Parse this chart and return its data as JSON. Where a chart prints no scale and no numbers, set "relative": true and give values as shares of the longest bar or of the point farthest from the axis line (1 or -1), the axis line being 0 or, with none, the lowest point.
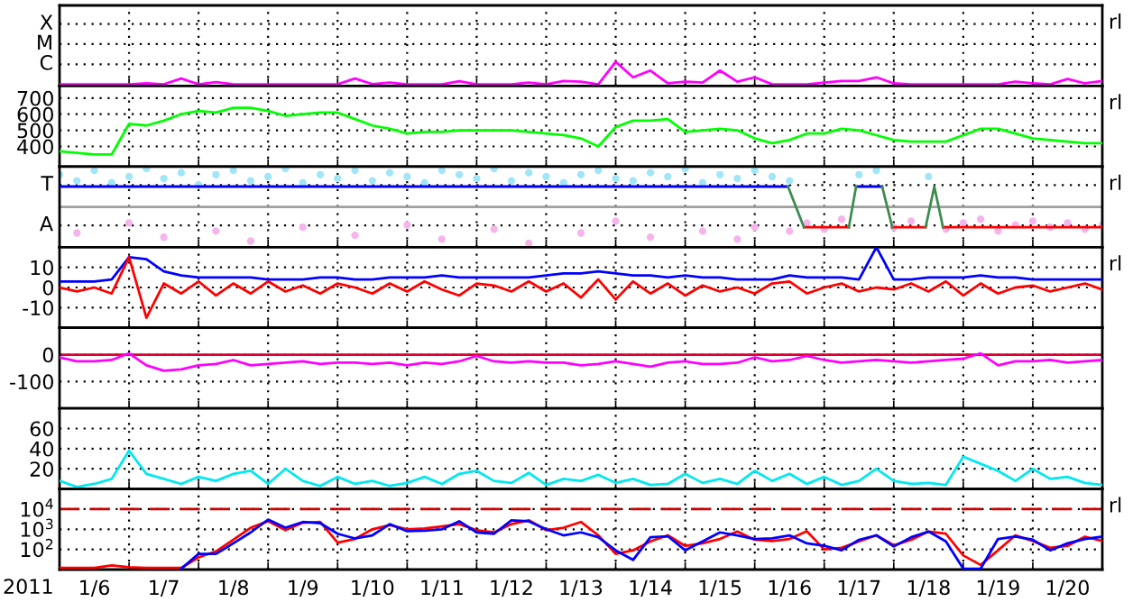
{
  "chart_data": [
    {
      "type": "line",
      "xlim": [
        "2011-01-06T00:00",
        "2011-01-21T00:00"
      ],
      "relative": true,
      "tick_labels": false,
      "grid": true,
      "annotations": [
        "X",
        "M",
        "C",
        "rl"
      ],
      "xticks": [
        {
          "value": "2011-01-07T00:00",
          "label": null
        },
        {
          "value": "2011-01-08T00:00",
          "label": null
        },
        {
          "value": "2011-01-09T00:00",
          "label": null
        },
        {
          "value": "2011-01-10T00:00",
          "label": null
        },
        {
          "value": "2011-01-11T00:00",
          "label": null
        },
        {
          "value": "2011-01-12T00:00",
          "label": null
        },
        {
          "value": "2011-01-13T00:00",
          "label": null
        },
        {
          "value": "2011-01-14T00:00",
          "label": null
        },
        {
          "value": "2011-01-15T00:00",
          "label": null
        },
        {
          "value": "2011-01-16T00:00",
          "label": null
        },
        {
          "value": "2011-01-17T00:00",
          "label": null
        },
        {
          "value": "2011-01-18T00:00",
          "label": null
        },
        {
          "value": "2011-01-19T00:00",
          "label": null
        },
        {
          "value": "2011-01-20T00:00",
          "label": null
        }
      ],
      "x": [
        "2011-01-06T00:00",
        "2011-01-06T06:00",
        "2011-01-06T12:00",
        "2011-01-06T18:00",
        "2011-01-07T00:00",
        "2011-01-07T06:00",
        "2011-01-07T12:00",
        "2011-01-07T18:00",
        "2011-01-08T00:00",
        "2011-01-08T06:00",
        "2011-01-08T12:00",
        "2011-01-08T18:00",
        "2011-01-09T00:00",
        "2011-01-09T06:00",
        "2011-01-09T12:00",
        "2011-01-09T18:00",
        "2011-01-10T00:00",
        "2011-01-10T06:00",
        "2011-01-10T12:00",
        "2011-01-10T18:00",
        "2011-01-11T00:00",
        "2011-01-11T06:00",
        "2011-01-11T12:00",
        "2011-01-11T18:00",
        "2011-01-12T00:00",
        "2011-01-12T06:00",
        "2011-01-12T12:00",
        "2011-01-12T18:00",
        "2011-01-13T00:00",
        "2011-01-13T06:00",
        "2011-01-13T12:00",
        "2011-01-13T18:00",
        "2011-01-14T00:00",
        "2011-01-14T06:00",
        "2011-01-14T12:00",
        "2011-01-14T18:00",
        "2011-01-15T00:00",
        "2011-01-15T06:00",
        "2011-01-15T12:00",
        "2011-01-15T18:00",
        "2011-01-16T00:00",
        "2011-01-16T06:00",
        "2011-01-16T12:00",
        "2011-01-16T18:00",
        "2011-01-17T00:00",
        "2011-01-17T06:00",
        "2011-01-17T12:00",
        "2011-01-17T18:00",
        "2011-01-18T00:00",
        "2011-01-18T06:00",
        "2011-01-18T12:00",
        "2011-01-18T18:00",
        "2011-01-19T00:00",
        "2011-01-19T06:00",
        "2011-01-19T12:00",
        "2011-01-19T18:00",
        "2011-01-20T00:00",
        "2011-01-20T06:00",
        "2011-01-20T12:00",
        "2011-01-20T18:00",
        "2011-01-21T00:00"
      ],
      "series": [
        {
          "color": "#ff00ff",
          "values": [
            0.07,
            0.07,
            0.07,
            0.07,
            0.07,
            0.11,
            0.07,
            0.31,
            0.07,
            0.16,
            0.07,
            0.07,
            0.07,
            0.07,
            0.07,
            0.07,
            0.07,
            0.31,
            0.08,
            0.14,
            0.07,
            0.07,
            0.07,
            0.2,
            0.07,
            0.07,
            0.07,
            0.14,
            0.07,
            0.21,
            0.18,
            0.07,
            1,
            0.36,
            0.64,
            0.11,
            0.18,
            0.14,
            0.64,
            0.18,
            0.36,
            0.07,
            0.07,
            0.07,
            0.14,
            0.21,
            0.21,
            0.36,
            0.11,
            0.07,
            0.07,
            0.07,
            0.07,
            0.07,
            0.07,
            0.18,
            0.11,
            0.07,
            0.29,
            0.11,
            0.21
          ]
        }
      ]
    },
    {
      "type": "line",
      "xlim": [
        "2011-01-06T00:00",
        "2011-01-21T00:00"
      ],
      "ylim": [
        275,
        775
      ],
      "yticks": [
        400,
        500,
        600,
        700
      ],
      "tick_labels": "y",
      "grid": true,
      "annotations": [
        "rl"
      ],
      "xticks": [
        {
          "value": "2011-01-07T00:00",
          "label": null
        },
        {
          "value": "2011-01-08T00:00",
          "label": null
        },
        {
          "value": "2011-01-09T00:00",
          "label": null
        },
        {
          "value": "2011-01-10T00:00",
          "label": null
        },
        {
          "value": "2011-01-11T00:00",
          "label": null
        },
        {
          "value": "2011-01-12T00:00",
          "label": null
        },
        {
          "value": "2011-01-13T00:00",
          "label": null
        },
        {
          "value": "2011-01-14T00:00",
          "label": null
        },
        {
          "value": "2011-01-15T00:00",
          "label": null
        },
        {
          "value": "2011-01-16T00:00",
          "label": null
        },
        {
          "value": "2011-01-17T00:00",
          "label": null
        },
        {
          "value": "2011-01-18T00:00",
          "label": null
        },
        {
          "value": "2011-01-19T00:00",
          "label": null
        },
        {
          "value": "2011-01-20T00:00",
          "label": null
        }
      ],
      "x": [
        "2011-01-06T00:00",
        "2011-01-06T06:00",
        "2011-01-06T12:00",
        "2011-01-06T18:00",
        "2011-01-07T00:00",
        "2011-01-07T06:00",
        "2011-01-07T12:00",
        "2011-01-07T18:00",
        "2011-01-08T00:00",
        "2011-01-08T06:00",
        "2011-01-08T12:00",
        "2011-01-08T18:00",
        "2011-01-09T00:00",
        "2011-01-09T06:00",
        "2011-01-09T12:00",
        "2011-01-09T18:00",
        "2011-01-10T00:00",
        "2011-01-10T06:00",
        "2011-01-10T12:00",
        "2011-01-10T18:00",
        "2011-01-11T00:00",
        "2011-01-11T06:00",
        "2011-01-11T12:00",
        "2011-01-11T18:00",
        "2011-01-12T00:00",
        "2011-01-12T06:00",
        "2011-01-12T12:00",
        "2011-01-12T18:00",
        "2011-01-13T00:00",
        "2011-01-13T06:00",
        "2011-01-13T12:00",
        "2011-01-13T18:00",
        "2011-01-14T00:00",
        "2011-01-14T06:00",
        "2011-01-14T12:00",
        "2011-01-14T18:00",
        "2011-01-15T00:00",
        "2011-01-15T06:00",
        "2011-01-15T12:00",
        "2011-01-15T18:00",
        "2011-01-16T00:00",
        "2011-01-16T06:00",
        "2011-01-16T12:00",
        "2011-01-16T18:00",
        "2011-01-17T00:00",
        "2011-01-17T06:00",
        "2011-01-17T12:00",
        "2011-01-17T18:00",
        "2011-01-18T00:00",
        "2011-01-18T06:00",
        "2011-01-18T12:00",
        "2011-01-18T18:00",
        "2011-01-19T00:00",
        "2011-01-19T06:00",
        "2011-01-19T12:00",
        "2011-01-19T18:00",
        "2011-01-20T00:00",
        "2011-01-20T06:00",
        "2011-01-20T12:00",
        "2011-01-20T18:00",
        "2011-01-21T00:00"
      ],
      "series": [
        {
          "color": "#00ff00",
          "values": [
            370,
            360,
            350,
            350,
            540,
            530,
            560,
            600,
            620,
            610,
            640,
            640,
            620,
            590,
            600,
            610,
            610,
            570,
            530,
            510,
            480,
            490,
            490,
            500,
            500,
            500,
            500,
            490,
            480,
            470,
            450,
            400,
            520,
            560,
            560,
            570,
            490,
            500,
            510,
            500,
            450,
            420,
            440,
            480,
            480,
            510,
            500,
            470,
            440,
            430,
            430,
            430,
            470,
            510,
            510,
            480,
            450,
            440,
            430,
            420,
            420
          ]
        }
      ]
    },
    {
      "type": "line",
      "xlim": [
        "2011-01-06T00:00",
        "2011-01-21T00:00"
      ],
      "relative": true,
      "tick_labels": false,
      "grid": true,
      "annotations": [
        "T",
        "A",
        "rl"
      ],
      "ref_lines": [
        {
          "axis": "y",
          "value": 0,
          "color": "#a0a0a0",
          "line_style": "solid"
        }
      ],
      "xticks": [
        {
          "value": "2011-01-07T00:00",
          "label": null
        },
        {
          "value": "2011-01-08T00:00",
          "label": null
        },
        {
          "value": "2011-01-09T00:00",
          "label": null
        },
        {
          "value": "2011-01-10T00:00",
          "label": null
        },
        {
          "value": "2011-01-11T00:00",
          "label": null
        },
        {
          "value": "2011-01-12T00:00",
          "label": null
        },
        {
          "value": "2011-01-13T00:00",
          "label": null
        },
        {
          "value": "2011-01-14T00:00",
          "label": null
        },
        {
          "value": "2011-01-15T00:00",
          "label": null
        },
        {
          "value": "2011-01-16T00:00",
          "label": null
        },
        {
          "value": "2011-01-17T00:00",
          "label": null
        },
        {
          "value": "2011-01-18T00:00",
          "label": null
        },
        {
          "value": "2011-01-19T00:00",
          "label": null
        },
        {
          "value": "2011-01-20T00:00",
          "label": null
        }
      ],
      "x": [
        "2011-01-06T00:00",
        "2011-01-06T06:00",
        "2011-01-06T12:00",
        "2011-01-06T18:00",
        "2011-01-07T00:00",
        "2011-01-07T06:00",
        "2011-01-07T12:00",
        "2011-01-07T18:00",
        "2011-01-08T00:00",
        "2011-01-08T06:00",
        "2011-01-08T12:00",
        "2011-01-08T18:00",
        "2011-01-09T00:00",
        "2011-01-09T06:00",
        "2011-01-09T12:00",
        "2011-01-09T18:00",
        "2011-01-10T00:00",
        "2011-01-10T06:00",
        "2011-01-10T12:00",
        "2011-01-10T18:00",
        "2011-01-11T00:00",
        "2011-01-11T06:00",
        "2011-01-11T12:00",
        "2011-01-11T18:00",
        "2011-01-12T00:00",
        "2011-01-12T06:00",
        "2011-01-12T12:00",
        "2011-01-12T18:00",
        "2011-01-13T00:00",
        "2011-01-13T06:00",
        "2011-01-13T12:00",
        "2011-01-13T18:00",
        "2011-01-14T00:00",
        "2011-01-14T06:00",
        "2011-01-14T12:00",
        "2011-01-14T18:00",
        "2011-01-15T00:00",
        "2011-01-15T06:00",
        "2011-01-15T12:00",
        "2011-01-15T18:00",
        "2011-01-16T00:00",
        "2011-01-16T06:00",
        "2011-01-16T12:00",
        "2011-01-16T18:00",
        "2011-01-17T00:00",
        "2011-01-17T06:00",
        "2011-01-17T12:00",
        "2011-01-17T18:00",
        "2011-01-18T00:00",
        "2011-01-18T06:00",
        "2011-01-18T12:00",
        "2011-01-18T18:00",
        "2011-01-19T00:00",
        "2011-01-19T06:00",
        "2011-01-19T12:00",
        "2011-01-19T18:00",
        "2011-01-20T00:00",
        "2011-01-20T06:00",
        "2011-01-20T12:00",
        "2011-01-20T18:00",
        "2011-01-21T00:00"
      ],
      "series": [
        {
          "type": "scatter",
          "color": "#a0e6f8",
          "values": [
            0.84,
            0.68,
            0.95,
            0.63,
            0.79,
            1,
            0.74,
            0.89,
            0.58,
            0.84,
            0.95,
            0.68,
            0.79,
            1,
            0.63,
            0.84,
            0.74,
            0.95,
            0.68,
            0.89,
            0.79,
            0.63,
            0.95,
            0.84,
            0.74,
            1,
            0.68,
            0.89,
            0.79,
            0.63,
            0.84,
            0.95,
            0.74,
            0.68,
            0.89,
            0.79,
            1,
            0.63,
            0.84,
            0.74,
            0.95,
            0.79,
            0.68,
            null,
            null,
            null,
            0.84,
            0.95,
            null,
            null,
            0.79,
            null,
            null,
            null,
            null,
            null,
            null,
            null,
            null,
            null,
            null
          ]
        },
        {
          "type": "scatter",
          "color": "#f5b5ec",
          "values": [
            null,
            -0.68,
            null,
            null,
            -0.42,
            null,
            -0.79,
            null,
            null,
            -0.63,
            null,
            -0.89,
            null,
            null,
            -0.53,
            null,
            null,
            -0.74,
            null,
            null,
            -0.47,
            null,
            -0.84,
            null,
            null,
            -0.58,
            null,
            -0.95,
            null,
            null,
            -0.68,
            null,
            -0.37,
            null,
            -0.79,
            null,
            null,
            -0.63,
            null,
            -0.84,
            -0.53,
            null,
            -0.63,
            -0.42,
            -0.58,
            -0.32,
            null,
            null,
            -0.53,
            -0.37,
            null,
            -0.58,
            -0.42,
            -0.32,
            -0.63,
            -0.47,
            -0.37,
            -0.53,
            -0.42,
            -0.58,
            -0.47
          ]
        },
        {
          "color": "#0000ff",
          "x": [
            "2011-01-06T00:00",
            "2011-01-16T11:30",
            "2011-01-16T12:00",
            "2011-01-17T11:00",
            "2011-01-17T20:00"
          ],
          "values": [
            0.53,
            0.53,
            null,
            0.53,
            0.53
          ]
        },
        {
          "color": "#ff0000",
          "x": [
            "2011-01-16T17:00",
            "2011-01-17T08:30",
            "2011-01-17T09:00",
            "2011-01-17T23:30",
            "2011-01-18T11:00",
            "2011-01-18T11:30",
            "2011-01-18T17:00",
            "2011-01-21T00:00"
          ],
          "values": [
            -0.53,
            -0.53,
            null,
            -0.53,
            -0.53,
            null,
            -0.53,
            -0.53
          ]
        },
        {
          "color": "#3c8c50",
          "x": [
            "2011-01-16T11:30",
            "2011-01-16T17:00",
            "2011-01-16T18:00",
            "2011-01-17T08:30",
            "2011-01-17T11:00",
            "2011-01-17T12:00",
            "2011-01-17T20:00",
            "2011-01-17T23:30",
            "2011-01-18T00:00",
            "2011-01-18T11:00",
            "2011-01-18T14:00",
            "2011-01-18T17:00"
          ],
          "values": [
            0.53,
            -0.53,
            null,
            -0.53,
            0.53,
            null,
            0.53,
            -0.53,
            null,
            -0.53,
            0.53,
            -0.53
          ]
        }
      ]
    },
    {
      "type": "line",
      "xlim": [
        "2011-01-06T00:00",
        "2011-01-21T00:00"
      ],
      "ylim": [
        -20,
        20
      ],
      "yticks": [
        -10,
        0,
        10
      ],
      "tick_labels": "y",
      "grid": true,
      "annotations": [
        "rl"
      ],
      "xticks": [
        {
          "value": "2011-01-07T00:00",
          "label": null
        },
        {
          "value": "2011-01-08T00:00",
          "label": null
        },
        {
          "value": "2011-01-09T00:00",
          "label": null
        },
        {
          "value": "2011-01-10T00:00",
          "label": null
        },
        {
          "value": "2011-01-11T00:00",
          "label": null
        },
        {
          "value": "2011-01-12T00:00",
          "label": null
        },
        {
          "value": "2011-01-13T00:00",
          "label": null
        },
        {
          "value": "2011-01-14T00:00",
          "label": null
        },
        {
          "value": "2011-01-15T00:00",
          "label": null
        },
        {
          "value": "2011-01-16T00:00",
          "label": null
        },
        {
          "value": "2011-01-17T00:00",
          "label": null
        },
        {
          "value": "2011-01-18T00:00",
          "label": null
        },
        {
          "value": "2011-01-19T00:00",
          "label": null
        },
        {
          "value": "2011-01-20T00:00",
          "label": null
        }
      ],
      "x": [
        "2011-01-06T00:00",
        "2011-01-06T06:00",
        "2011-01-06T12:00",
        "2011-01-06T18:00",
        "2011-01-07T00:00",
        "2011-01-07T06:00",
        "2011-01-07T12:00",
        "2011-01-07T18:00",
        "2011-01-08T00:00",
        "2011-01-08T06:00",
        "2011-01-08T12:00",
        "2011-01-08T18:00",
        "2011-01-09T00:00",
        "2011-01-09T06:00",
        "2011-01-09T12:00",
        "2011-01-09T18:00",
        "2011-01-10T00:00",
        "2011-01-10T06:00",
        "2011-01-10T12:00",
        "2011-01-10T18:00",
        "2011-01-11T00:00",
        "2011-01-11T06:00",
        "2011-01-11T12:00",
        "2011-01-11T18:00",
        "2011-01-12T00:00",
        "2011-01-12T06:00",
        "2011-01-12T12:00",
        "2011-01-12T18:00",
        "2011-01-13T00:00",
        "2011-01-13T06:00",
        "2011-01-13T12:00",
        "2011-01-13T18:00",
        "2011-01-14T00:00",
        "2011-01-14T06:00",
        "2011-01-14T12:00",
        "2011-01-14T18:00",
        "2011-01-15T00:00",
        "2011-01-15T06:00",
        "2011-01-15T12:00",
        "2011-01-15T18:00",
        "2011-01-16T00:00",
        "2011-01-16T06:00",
        "2011-01-16T12:00",
        "2011-01-16T18:00",
        "2011-01-17T00:00",
        "2011-01-17T06:00",
        "2011-01-17T12:00",
        "2011-01-17T18:00",
        "2011-01-18T00:00",
        "2011-01-18T06:00",
        "2011-01-18T12:00",
        "2011-01-18T18:00",
        "2011-01-19T00:00",
        "2011-01-19T06:00",
        "2011-01-19T12:00",
        "2011-01-19T18:00",
        "2011-01-20T00:00",
        "2011-01-20T06:00",
        "2011-01-20T12:00",
        "2011-01-20T18:00",
        "2011-01-21T00:00"
      ],
      "series": [
        {
          "color": "#0000ff",
          "values": [
            3,
            3,
            3,
            4,
            15,
            14,
            8,
            6,
            5,
            5,
            5,
            5,
            4,
            4,
            4,
            5,
            5,
            4,
            4,
            5,
            5,
            5,
            6,
            5,
            5,
            5,
            5,
            5,
            6,
            7,
            7,
            8,
            7,
            6,
            6,
            5,
            6,
            5,
            5,
            4,
            4,
            4,
            6,
            5,
            5,
            5,
            4,
            20,
            4,
            4,
            5,
            5,
            5,
            6,
            5,
            5,
            4,
            4,
            4,
            4,
            4
          ]
        },
        {
          "color": "#ff0000",
          "values": [
            0,
            -2,
            0,
            -3,
            15,
            -15,
            2,
            -3,
            3,
            -4,
            2,
            -3,
            3,
            -2,
            1,
            -3,
            2,
            0,
            -3,
            2,
            -2,
            3,
            -1,
            -4,
            2,
            1,
            -2,
            3,
            -2,
            2,
            -5,
            4,
            -6,
            3,
            -3,
            2,
            -4,
            1,
            -2,
            0,
            -3,
            2,
            3,
            -3,
            0,
            2,
            -2,
            0,
            -1,
            2,
            -2,
            3,
            -4,
            2,
            -3,
            0,
            1,
            -2,
            0,
            2,
            -1
          ]
        }
      ]
    },
    {
      "type": "line",
      "xlim": [
        "2011-01-06T00:00",
        "2011-01-21T00:00"
      ],
      "ylim": [
        -200,
        100
      ],
      "yticks": [
        -100,
        0
      ],
      "tick_labels": "y",
      "grid": true,
      "ref_lines": [
        {
          "axis": "y",
          "value": 0,
          "color": "#dd0033",
          "line_style": "solid"
        }
      ],
      "xticks": [
        {
          "value": "2011-01-07T00:00",
          "label": null
        },
        {
          "value": "2011-01-08T00:00",
          "label": null
        },
        {
          "value": "2011-01-09T00:00",
          "label": null
        },
        {
          "value": "2011-01-10T00:00",
          "label": null
        },
        {
          "value": "2011-01-11T00:00",
          "label": null
        },
        {
          "value": "2011-01-12T00:00",
          "label": null
        },
        {
          "value": "2011-01-13T00:00",
          "label": null
        },
        {
          "value": "2011-01-14T00:00",
          "label": null
        },
        {
          "value": "2011-01-15T00:00",
          "label": null
        },
        {
          "value": "2011-01-16T00:00",
          "label": null
        },
        {
          "value": "2011-01-17T00:00",
          "label": null
        },
        {
          "value": "2011-01-18T00:00",
          "label": null
        },
        {
          "value": "2011-01-19T00:00",
          "label": null
        },
        {
          "value": "2011-01-20T00:00",
          "label": null
        }
      ],
      "x": [
        "2011-01-06T00:00",
        "2011-01-06T06:00",
        "2011-01-06T12:00",
        "2011-01-06T18:00",
        "2011-01-07T00:00",
        "2011-01-07T06:00",
        "2011-01-07T12:00",
        "2011-01-07T18:00",
        "2011-01-08T00:00",
        "2011-01-08T06:00",
        "2011-01-08T12:00",
        "2011-01-08T18:00",
        "2011-01-09T00:00",
        "2011-01-09T06:00",
        "2011-01-09T12:00",
        "2011-01-09T18:00",
        "2011-01-10T00:00",
        "2011-01-10T06:00",
        "2011-01-10T12:00",
        "2011-01-10T18:00",
        "2011-01-11T00:00",
        "2011-01-11T06:00",
        "2011-01-11T12:00",
        "2011-01-11T18:00",
        "2011-01-12T00:00",
        "2011-01-12T06:00",
        "2011-01-12T12:00",
        "2011-01-12T18:00",
        "2011-01-13T00:00",
        "2011-01-13T06:00",
        "2011-01-13T12:00",
        "2011-01-13T18:00",
        "2011-01-14T00:00",
        "2011-01-14T06:00",
        "2011-01-14T12:00",
        "2011-01-14T18:00",
        "2011-01-15T00:00",
        "2011-01-15T06:00",
        "2011-01-15T12:00",
        "2011-01-15T18:00",
        "2011-01-16T00:00",
        "2011-01-16T06:00",
        "2011-01-16T12:00",
        "2011-01-16T18:00",
        "2011-01-17T00:00",
        "2011-01-17T06:00",
        "2011-01-17T12:00",
        "2011-01-17T18:00",
        "2011-01-18T00:00",
        "2011-01-18T06:00",
        "2011-01-18T12:00",
        "2011-01-18T18:00",
        "2011-01-19T00:00",
        "2011-01-19T06:00",
        "2011-01-19T12:00",
        "2011-01-19T18:00",
        "2011-01-20T00:00",
        "2011-01-20T06:00",
        "2011-01-20T12:00",
        "2011-01-20T18:00",
        "2011-01-21T00:00"
      ],
      "series": [
        {
          "color": "#ff00ff",
          "values": [
            -10,
            -25,
            -25,
            -20,
            5,
            -40,
            -60,
            -55,
            -40,
            -35,
            -20,
            -40,
            -35,
            -30,
            -25,
            -35,
            -30,
            -30,
            -35,
            -30,
            -40,
            -30,
            -35,
            -25,
            -5,
            -25,
            -30,
            -25,
            -30,
            -30,
            -40,
            -35,
            -25,
            -35,
            -45,
            -30,
            -25,
            -35,
            -35,
            -30,
            -10,
            -25,
            -20,
            -5,
            -20,
            -30,
            -25,
            -20,
            -25,
            -30,
            -25,
            -20,
            -15,
            5,
            -40,
            -25,
            -25,
            -20,
            -30,
            -25,
            -20
          ]
        }
      ]
    },
    {
      "type": "line",
      "xlim": [
        "2011-01-06T00:00",
        "2011-01-21T00:00"
      ],
      "ylim": [
        0,
        80
      ],
      "yticks": [
        20,
        40,
        60
      ],
      "tick_labels": "y",
      "grid": true,
      "xticks": [
        {
          "value": "2011-01-07T00:00",
          "label": null
        },
        {
          "value": "2011-01-08T00:00",
          "label": null
        },
        {
          "value": "2011-01-09T00:00",
          "label": null
        },
        {
          "value": "2011-01-10T00:00",
          "label": null
        },
        {
          "value": "2011-01-11T00:00",
          "label": null
        },
        {
          "value": "2011-01-12T00:00",
          "label": null
        },
        {
          "value": "2011-01-13T00:00",
          "label": null
        },
        {
          "value": "2011-01-14T00:00",
          "label": null
        },
        {
          "value": "2011-01-15T00:00",
          "label": null
        },
        {
          "value": "2011-01-16T00:00",
          "label": null
        },
        {
          "value": "2011-01-17T00:00",
          "label": null
        },
        {
          "value": "2011-01-18T00:00",
          "label": null
        },
        {
          "value": "2011-01-19T00:00",
          "label": null
        },
        {
          "value": "2011-01-20T00:00",
          "label": null
        }
      ],
      "x": [
        "2011-01-06T00:00",
        "2011-01-06T06:00",
        "2011-01-06T12:00",
        "2011-01-06T18:00",
        "2011-01-07T00:00",
        "2011-01-07T06:00",
        "2011-01-07T12:00",
        "2011-01-07T18:00",
        "2011-01-08T00:00",
        "2011-01-08T06:00",
        "2011-01-08T12:00",
        "2011-01-08T18:00",
        "2011-01-09T00:00",
        "2011-01-09T06:00",
        "2011-01-09T12:00",
        "2011-01-09T18:00",
        "2011-01-10T00:00",
        "2011-01-10T06:00",
        "2011-01-10T12:00",
        "2011-01-10T18:00",
        "2011-01-11T00:00",
        "2011-01-11T06:00",
        "2011-01-11T12:00",
        "2011-01-11T18:00",
        "2011-01-12T00:00",
        "2011-01-12T06:00",
        "2011-01-12T12:00",
        "2011-01-12T18:00",
        "2011-01-13T00:00",
        "2011-01-13T06:00",
        "2011-01-13T12:00",
        "2011-01-13T18:00",
        "2011-01-14T00:00",
        "2011-01-14T06:00",
        "2011-01-14T12:00",
        "2011-01-14T18:00",
        "2011-01-15T00:00",
        "2011-01-15T06:00",
        "2011-01-15T12:00",
        "2011-01-15T18:00",
        "2011-01-16T00:00",
        "2011-01-16T06:00",
        "2011-01-16T12:00",
        "2011-01-16T18:00",
        "2011-01-17T00:00",
        "2011-01-17T06:00",
        "2011-01-17T12:00",
        "2011-01-17T18:00",
        "2011-01-18T00:00",
        "2011-01-18T06:00",
        "2011-01-18T12:00",
        "2011-01-18T18:00",
        "2011-01-19T00:00",
        "2011-01-19T06:00",
        "2011-01-19T12:00",
        "2011-01-19T18:00",
        "2011-01-20T00:00",
        "2011-01-20T06:00",
        "2011-01-20T12:00",
        "2011-01-20T18:00",
        "2011-01-21T00:00"
      ],
      "series": [
        {
          "color": "#00e8f0",
          "values": [
            8,
            2,
            5,
            10,
            38,
            15,
            10,
            5,
            12,
            8,
            15,
            18,
            5,
            20,
            8,
            3,
            12,
            5,
            8,
            3,
            6,
            12,
            5,
            15,
            18,
            8,
            6,
            16,
            4,
            10,
            8,
            14,
            6,
            10,
            4,
            5,
            15,
            6,
            10,
            5,
            18,
            8,
            15,
            5,
            12,
            4,
            8,
            20,
            8,
            5,
            6,
            4,
            32,
            25,
            18,
            8,
            20,
            10,
            12,
            6,
            4
          ]
        }
      ]
    },
    {
      "type": "line",
      "log": "y",
      "xlim": [
        "2011-01-06T00:00",
        "2011-01-21T00:00"
      ],
      "ylim": [
        10,
        100000
      ],
      "yticks": [
        {
          "value": 100,
          "label": "10$^{2}$"
        },
        {
          "value": 1000,
          "label": "10$^{3}$"
        },
        {
          "value": 10000,
          "label": "10$^{4}$"
        }
      ],
      "grid": true,
      "annotations": [
        "rl"
      ],
      "xlabel": "2011",
      "ref_lines": [
        {
          "axis": "y",
          "value": 10000,
          "color": "#cc0000",
          "line_style": "dashed"
        }
      ],
      "xticks": [
        {
          "value": "2011-01-06T12:00",
          "label": "1/6"
        },
        {
          "value": "2011-01-07T00:00",
          "label": null
        },
        {
          "value": "2011-01-07T12:00",
          "label": "1/7"
        },
        {
          "value": "2011-01-08T00:00",
          "label": null
        },
        {
          "value": "2011-01-08T12:00",
          "label": "1/8"
        },
        {
          "value": "2011-01-09T00:00",
          "label": null
        },
        {
          "value": "2011-01-09T12:00",
          "label": "1/9"
        },
        {
          "value": "2011-01-10T00:00",
          "label": null
        },
        {
          "value": "2011-01-10T12:00",
          "label": "1/10"
        },
        {
          "value": "2011-01-11T00:00",
          "label": null
        },
        {
          "value": "2011-01-11T12:00",
          "label": "1/11"
        },
        {
          "value": "2011-01-12T00:00",
          "label": null
        },
        {
          "value": "2011-01-12T12:00",
          "label": "1/12"
        },
        {
          "value": "2011-01-13T00:00",
          "label": null
        },
        {
          "value": "2011-01-13T12:00",
          "label": "1/13"
        },
        {
          "value": "2011-01-14T00:00",
          "label": null
        },
        {
          "value": "2011-01-14T12:00",
          "label": "1/14"
        },
        {
          "value": "2011-01-15T00:00",
          "label": null
        },
        {
          "value": "2011-01-15T12:00",
          "label": "1/15"
        },
        {
          "value": "2011-01-16T00:00",
          "label": null
        },
        {
          "value": "2011-01-16T12:00",
          "label": "1/16"
        },
        {
          "value": "2011-01-17T00:00",
          "label": null
        },
        {
          "value": "2011-01-17T12:00",
          "label": "1/17"
        },
        {
          "value": "2011-01-18T00:00",
          "label": null
        },
        {
          "value": "2011-01-18T12:00",
          "label": "1/18"
        },
        {
          "value": "2011-01-19T00:00",
          "label": null
        },
        {
          "value": "2011-01-19T12:00",
          "label": "1/19"
        },
        {
          "value": "2011-01-20T00:00",
          "label": null
        },
        {
          "value": "2011-01-20T12:00",
          "label": "1/20"
        }
      ],
      "x": [
        "2011-01-06T00:00",
        "2011-01-06T06:00",
        "2011-01-06T12:00",
        "2011-01-06T18:00",
        "2011-01-07T00:00",
        "2011-01-07T06:00",
        "2011-01-07T12:00",
        "2011-01-07T18:00",
        "2011-01-08T00:00",
        "2011-01-08T06:00",
        "2011-01-08T12:00",
        "2011-01-08T18:00",
        "2011-01-09T00:00",
        "2011-01-09T06:00",
        "2011-01-09T12:00",
        "2011-01-09T18:00",
        "2011-01-10T00:00",
        "2011-01-10T06:00",
        "2011-01-10T12:00",
        "2011-01-10T18:00",
        "2011-01-11T00:00",
        "2011-01-11T06:00",
        "2011-01-11T12:00",
        "2011-01-11T18:00",
        "2011-01-12T00:00",
        "2011-01-12T06:00",
        "2011-01-12T12:00",
        "2011-01-12T18:00",
        "2011-01-13T00:00",
        "2011-01-13T06:00",
        "2011-01-13T12:00",
        "2011-01-13T18:00",
        "2011-01-14T00:00",
        "2011-01-14T06:00",
        "2011-01-14T12:00",
        "2011-01-14T18:00",
        "2011-01-15T00:00",
        "2011-01-15T06:00",
        "2011-01-15T12:00",
        "2011-01-15T18:00",
        "2011-01-16T00:00",
        "2011-01-16T06:00",
        "2011-01-16T12:00",
        "2011-01-16T18:00",
        "2011-01-17T00:00",
        "2011-01-17T06:00",
        "2011-01-17T12:00",
        "2011-01-17T18:00",
        "2011-01-18T00:00",
        "2011-01-18T06:00",
        "2011-01-18T12:00",
        "2011-01-18T18:00",
        "2011-01-19T00:00",
        "2011-01-19T06:00",
        "2011-01-19T12:00",
        "2011-01-19T18:00",
        "2011-01-20T00:00",
        "2011-01-20T06:00",
        "2011-01-20T12:00",
        "2011-01-20T18:00",
        "2011-01-21T00:00"
      ],
      "series": [
        {
          "color": "#ff0000",
          "values": [
            12,
            12,
            12,
            16,
            13,
            12,
            12,
            12,
            40,
            80,
            300,
            1200,
            2500,
            900,
            2100,
            2300,
            215,
            330,
            1000,
            1600,
            1000,
            1100,
            1400,
            1800,
            900,
            700,
            1800,
            2800,
            900,
            1200,
            2300,
            500,
            60,
            90,
            250,
            500,
            150,
            200,
            330,
            770,
            300,
            260,
            330,
            800,
            100,
            120,
            250,
            500,
            160,
            300,
            770,
            600,
            50,
            17,
            90,
            500,
            260,
            120,
            150,
            430,
            260
          ]
        },
        {
          "color": "#0000ff",
          "values": [
            null,
            null,
            null,
            null,
            null,
            null,
            null,
            11,
            60,
            60,
            200,
            700,
            3000,
            1200,
            2300,
            2000,
            600,
            350,
            500,
            1800,
            800,
            850,
            1000,
            2500,
            700,
            600,
            2800,
            2500,
            1000,
            500,
            700,
            400,
            90,
            30,
            400,
            450,
            90,
            250,
            700,
            500,
            330,
            350,
            500,
            200,
            150,
            90,
            300,
            500,
            140,
            400,
            770,
            250,
            11,
            11,
            330,
            430,
            300,
            90,
            200,
            330,
            430
          ]
        }
      ]
    }
  ]
}
